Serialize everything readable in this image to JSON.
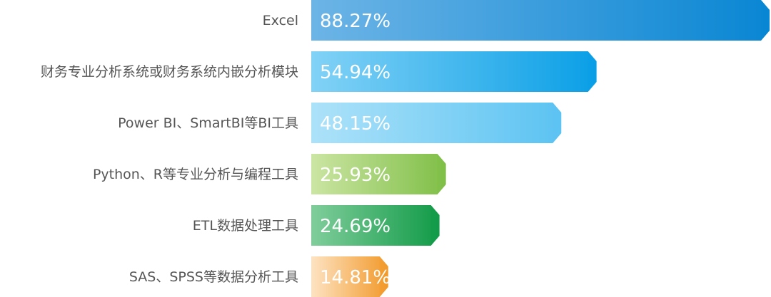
{
  "chart_data": {
    "type": "bar",
    "orientation": "horizontal",
    "categories": [
      "Excel",
      "财务专业分析系统或财务系统内嵌分析模块",
      "Power BI、SmartBI等BI工具",
      "Python、R等专业分析与编程工具",
      "ETL数据处理工具",
      "SAS、SPSS等数据分析工具"
    ],
    "values": [
      88.27,
      54.94,
      48.15,
      25.93,
      24.69,
      14.81
    ],
    "value_labels": [
      "88.27%",
      "54.94%",
      "48.15%",
      "25.93%",
      "24.69%",
      "14.81%"
    ],
    "gradients": [
      [
        "#6cb4e6",
        "#0a86d3"
      ],
      [
        "#82d2f6",
        "#0a9fe6"
      ],
      [
        "#ade2f9",
        "#5cc3f2"
      ],
      [
        "#cbe5a3",
        "#80bf48"
      ],
      [
        "#80cd9b",
        "#129b48"
      ],
      [
        "#fde3c2",
        "#f29a2c"
      ]
    ]
  }
}
